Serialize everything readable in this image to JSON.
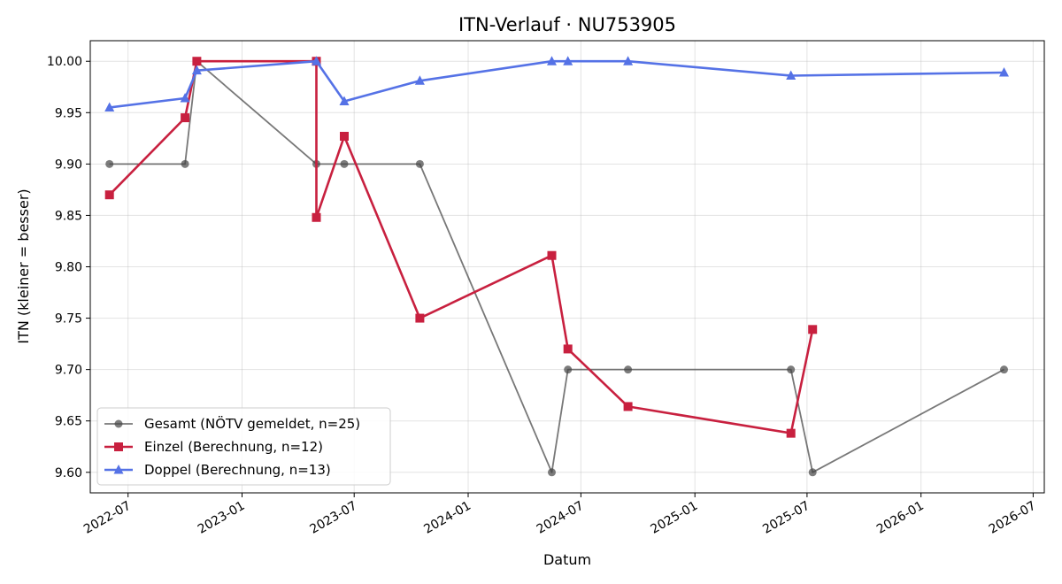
{
  "chart_data": {
    "type": "line",
    "title": "ITN-Verlauf · NU753905",
    "xlabel": "Datum",
    "ylabel": "ITN  (kleiner = besser)",
    "x_ticks": [
      "2022-07",
      "2023-01",
      "2023-07",
      "2024-01",
      "2024-07",
      "2025-01",
      "2025-07",
      "2026-01",
      "2026-07"
    ],
    "y_ticks": [
      "9.60",
      "9.65",
      "9.70",
      "9.75",
      "9.80",
      "9.85",
      "9.90",
      "9.95",
      "10.00"
    ],
    "xlim": [
      "2022-05-01",
      "2026-07-19"
    ],
    "ylim": [
      9.58,
      10.02
    ],
    "grid": true,
    "legend_position": "lower-left",
    "series": [
      {
        "name": "Gesamt (NÖTV gemeldet, n=25)",
        "color": "#444444",
        "marker": "circle",
        "points": [
          {
            "x": "2022-06-01",
            "y": 9.9
          },
          {
            "x": "2022-10-01",
            "y": 9.9
          },
          {
            "x": "2022-10-20",
            "y": 10.0
          },
          {
            "x": "2023-05-01",
            "y": 9.9
          },
          {
            "x": "2023-06-15",
            "y": 9.9
          },
          {
            "x": "2023-10-15",
            "y": 9.9
          },
          {
            "x": "2024-05-15",
            "y": 9.6
          },
          {
            "x": "2024-06-10",
            "y": 9.7
          },
          {
            "x": "2024-09-15",
            "y": 9.7
          },
          {
            "x": "2025-06-05",
            "y": 9.7
          },
          {
            "x": "2025-07-10",
            "y": 9.6
          },
          {
            "x": "2026-05-15",
            "y": 9.7
          }
        ]
      },
      {
        "name": "Einzel (Berechnung, n=12)",
        "color": "#c8203f",
        "marker": "square",
        "points": [
          {
            "x": "2022-06-01",
            "y": 9.87
          },
          {
            "x": "2022-10-01",
            "y": 9.945
          },
          {
            "x": "2022-10-20",
            "y": 10.0
          },
          {
            "x": "2023-05-01",
            "y": 10.0
          },
          {
            "x": "2023-05-01",
            "y": 9.848
          },
          {
            "x": "2023-06-15",
            "y": 9.927
          },
          {
            "x": "2023-10-15",
            "y": 9.75
          },
          {
            "x": "2024-05-15",
            "y": 9.811
          },
          {
            "x": "2024-06-10",
            "y": 9.72
          },
          {
            "x": "2024-09-15",
            "y": 9.664
          },
          {
            "x": "2025-06-05",
            "y": 9.638
          },
          {
            "x": "2025-07-10",
            "y": 9.739
          }
        ]
      },
      {
        "name": "Doppel (Berechnung, n=13)",
        "color": "#5572e6",
        "marker": "triangle",
        "points": [
          {
            "x": "2022-06-01",
            "y": 9.955
          },
          {
            "x": "2022-10-01",
            "y": 9.964
          },
          {
            "x": "2022-10-20",
            "y": 9.991
          },
          {
            "x": "2023-05-01",
            "y": 10.0
          },
          {
            "x": "2023-06-15",
            "y": 9.961
          },
          {
            "x": "2023-10-15",
            "y": 9.981
          },
          {
            "x": "2024-05-15",
            "y": 10.0
          },
          {
            "x": "2024-06-10",
            "y": 10.0
          },
          {
            "x": "2024-09-15",
            "y": 10.0
          },
          {
            "x": "2025-06-05",
            "y": 9.986
          },
          {
            "x": "2026-05-15",
            "y": 9.989
          }
        ]
      }
    ]
  }
}
